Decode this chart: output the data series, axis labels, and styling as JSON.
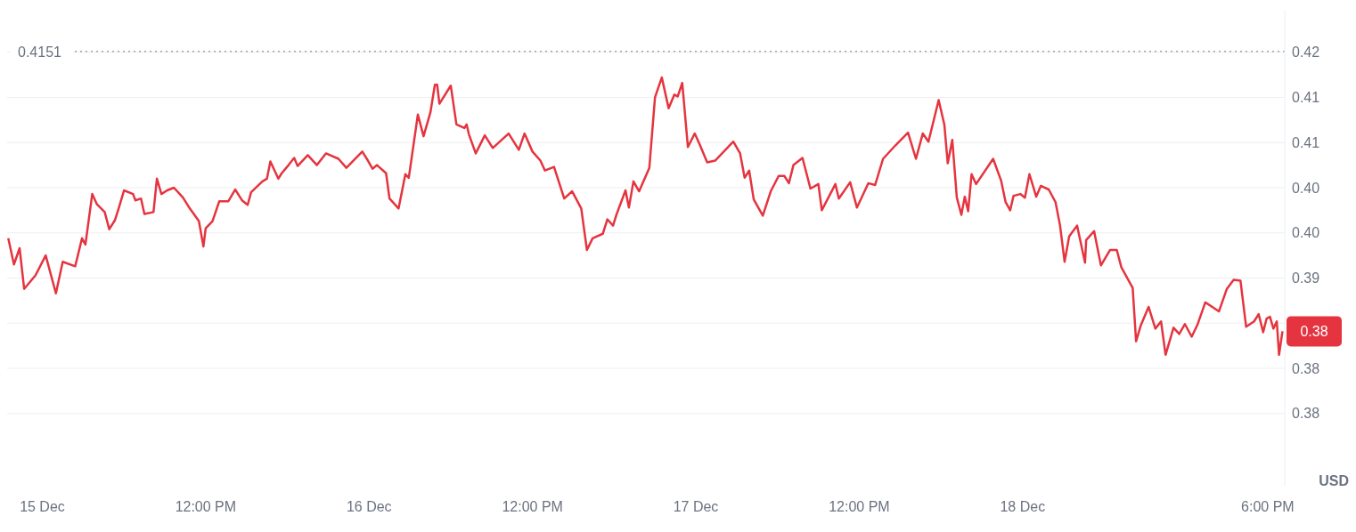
{
  "chart_data": {
    "type": "line",
    "ylabel": "USD",
    "x": [
      "--12-14T21:30",
      "--12-14T21:55",
      "--12-14T22:20",
      "--12-14T22:40",
      "--12-14T23:30",
      "--12-15T00:15",
      "--12-15T01:00",
      "--12-15T01:30",
      "--12-15T02:25",
      "--12-15T02:55",
      "--12-15T03:10",
      "--12-15T03:40",
      "--12-15T04:00",
      "--12-15T04:35",
      "--12-15T04:55",
      "--12-15T05:20",
      "--12-15T05:40",
      "--12-15T06:00",
      "--12-15T06:40",
      "--12-15T06:50",
      "--12-15T07:15",
      "--12-15T07:30",
      "--12-15T08:10",
      "--12-15T08:25",
      "--12-15T08:45",
      "--12-15T09:10",
      "--12-15T09:40",
      "--12-15T10:20",
      "--12-15T10:50",
      "--12-15T11:30",
      "--12-15T11:50",
      "--12-15T12:00",
      "--12-15T12:30",
      "--12-15T13:00",
      "--12-15T13:40",
      "--12-15T14:10",
      "--12-15T14:40",
      "--12-15T15:05",
      "--12-15T15:20",
      "--12-15T16:10",
      "--12-15T16:30",
      "--12-15T16:45",
      "--12-15T17:20",
      "--12-15T17:35",
      "--12-15T18:05",
      "--12-15T18:30",
      "--12-15T18:45",
      "--12-15T19:30",
      "--12-15T20:10",
      "--12-15T20:50",
      "--12-15T21:45",
      "--12-15T22:20",
      "--12-15T23:30",
      "--12-15T23:55",
      "--12-16T00:15",
      "--12-16T00:35",
      "--12-16T01:15",
      "--12-16T01:30",
      "--12-16T02:10",
      "--12-16T02:40",
      "--12-16T02:55",
      "--12-16T03:35",
      "--12-16T04:00",
      "--12-16T04:30",
      "--12-16T04:50",
      "--12-16T05:00",
      "--12-16T05:10",
      "--12-16T06:00",
      "--12-16T06:25",
      "--12-16T07:00",
      "--12-16T07:10",
      "--12-16T07:20",
      "--12-16T07:50",
      "--12-16T08:30",
      "--12-16T09:05",
      "--12-16T10:15",
      "--12-16T11:00",
      "--12-16T11:25",
      "--12-16T12:00",
      "--12-16T12:35",
      "--12-16T12:55",
      "--12-16T13:35",
      "--12-16T14:20",
      "--12-16T14:55",
      "--12-16T15:35",
      "--12-16T16:00",
      "--12-16T16:25",
      "--12-16T17:10",
      "--12-16T17:30",
      "--12-16T17:55",
      "--12-16T18:10",
      "--12-16T18:50",
      "--12-16T19:05",
      "--12-16T19:25",
      "--12-16T19:50",
      "--12-16T20:35",
      "--12-16T21:00",
      "--12-16T21:30",
      "--12-16T22:00",
      "--12-16T22:25",
      "--12-16T22:40",
      "--12-16T23:00",
      "--12-16T23:25",
      "--12-16T23:55",
      "--12-17T00:15",
      "--12-17T00:50",
      "--12-17T01:25",
      "--12-17T02:45",
      "--12-17T03:15",
      "--12-17T03:35",
      "--12-17T03:55",
      "--12-17T04:15",
      "--12-17T04:55",
      "--12-17T05:30",
      "--12-17T06:05",
      "--12-17T06:30",
      "--12-17T06:50",
      "--12-17T07:10",
      "--12-17T07:50",
      "--12-17T08:25",
      "--12-17T09:00",
      "--12-17T09:15",
      "--12-17T10:15",
      "--12-17T10:30",
      "--12-17T11:20",
      "--12-17T11:50",
      "--12-17T12:40",
      "--12-17T13:10",
      "--12-17T13:45",
      "--12-17T14:40",
      "--12-17T15:35",
      "--12-17T16:10",
      "--12-17T16:40",
      "--12-17T17:05",
      "--12-17T17:50",
      "--12-17T18:15",
      "--12-17T18:30",
      "--12-17T18:50",
      "--12-17T19:10",
      "--12-17T19:30",
      "--12-17T19:45",
      "--12-17T20:00",
      "--12-17T20:15",
      "--12-17T20:35",
      "--12-17T21:50",
      "--12-17T22:25",
      "--12-17T22:45",
      "--12-17T23:05",
      "--12-17T23:20",
      "--12-17T23:50",
      "--12-18T00:10",
      "--12-18T00:30",
      "--12-18T01:00",
      "--12-18T01:20",
      "--12-18T01:55",
      "--12-18T02:25",
      "--12-18T02:45",
      "--12-18T03:05",
      "--12-18T03:25",
      "--12-18T04:00",
      "--12-18T04:35",
      "--12-18T04:40",
      "--12-18T05:15",
      "--12-18T05:45",
      "--12-18T06:25",
      "--12-18T06:55",
      "--12-18T07:15",
      "--12-18T08:05",
      "--12-18T08:20",
      "--12-18T08:40",
      "--12-18T09:15",
      "--12-18T09:45",
      "--12-18T10:10",
      "--12-18T10:30",
      "--12-18T11:05",
      "--12-18T11:30",
      "--12-18T11:55",
      "--12-18T12:25",
      "--12-18T12:50",
      "--12-18T13:25",
      "--12-18T13:50",
      "--12-18T14:25",
      "--12-18T15:00",
      "--12-18T15:30",
      "--12-18T16:00",
      "--12-18T16:25",
      "--12-18T17:00",
      "--12-18T17:20",
      "--12-18T17:40",
      "--12-18T17:55",
      "--12-18T18:10",
      "--12-18T18:25",
      "--12-18T18:40",
      "--12-18T18:50",
      "--12-18T19:05"
    ],
    "series": [
      {
        "color": "#e5343f",
        "values": [
          0.3944,
          0.3915,
          0.3933,
          0.3888,
          0.3903,
          0.3925,
          0.3883,
          0.3918,
          0.3913,
          0.3944,
          0.3937,
          0.3993,
          0.3982,
          0.3973,
          0.3954,
          0.3964,
          0.398,
          0.3997,
          0.3993,
          0.3986,
          0.3988,
          0.3971,
          0.3973,
          0.401,
          0.3993,
          0.3997,
          0.4,
          0.3989,
          0.3977,
          0.3963,
          0.3935,
          0.3955,
          0.3963,
          0.3985,
          0.3985,
          0.3998,
          0.3986,
          0.3981,
          0.3995,
          0.4007,
          0.401,
          0.4029,
          0.401,
          0.4016,
          0.4025,
          0.4033,
          0.4024,
          0.4036,
          0.4025,
          0.4038,
          0.4032,
          0.4022,
          0.404,
          0.403,
          0.4021,
          0.4025,
          0.4016,
          0.3988,
          0.3977,
          0.4015,
          0.4011,
          0.4081,
          0.4057,
          0.4083,
          0.4114,
          0.4114,
          0.4093,
          0.4113,
          0.407,
          0.4066,
          0.407,
          0.4059,
          0.4038,
          0.4058,
          0.4044,
          0.406,
          0.4042,
          0.406,
          0.404,
          0.403,
          0.4019,
          0.4023,
          0.3988,
          0.3996,
          0.3977,
          0.3931,
          0.3944,
          0.3949,
          0.3965,
          0.3958,
          0.397,
          0.3997,
          0.3978,
          0.4007,
          0.3996,
          0.4022,
          0.41,
          0.4122,
          0.4088,
          0.4103,
          0.4101,
          0.4116,
          0.4045,
          0.406,
          0.4049,
          0.4028,
          0.403,
          0.4051,
          0.4038,
          0.4011,
          0.4019,
          0.3987,
          0.3969,
          0.3996,
          0.4013,
          0.4013,
          0.4005,
          0.4025,
          0.4033,
          0.3999,
          0.4004,
          0.3975,
          0.4004,
          0.3988,
          0.4006,
          0.3978,
          0.4005,
          0.4003,
          0.4032,
          0.4047,
          0.4061,
          0.4032,
          0.406,
          0.4051,
          0.4097,
          0.407,
          0.4027,
          0.4053,
          0.3989,
          0.397,
          0.399,
          0.3974,
          0.4015,
          0.4004,
          0.4032,
          0.4008,
          0.3984,
          0.3975,
          0.3991,
          0.3993,
          0.3989,
          0.4015,
          0.399,
          0.4002,
          0.3998,
          0.3984,
          0.3958,
          0.3918,
          0.3946,
          0.3958,
          0.3917,
          0.3942,
          0.3952,
          0.3914,
          0.3931,
          0.3931,
          0.3912,
          0.3889,
          0.383,
          0.3847,
          0.3868,
          0.3844,
          0.3852,
          0.3815,
          0.3845,
          0.3838,
          0.3849,
          0.3835,
          0.3848,
          0.3873,
          0.3869,
          0.3863,
          0.3888,
          0.3898,
          0.3897,
          0.3846,
          0.3852,
          0.386,
          0.384,
          0.3855,
          0.3857,
          0.3844,
          0.3852,
          0.3815,
          0.3841
        ]
      }
    ],
    "xlim": [
      "--12-14T21:25",
      "--12-18T19:15"
    ],
    "xticks": [
      {
        "value": "--12-15T00:00",
        "label": "15 Dec"
      },
      {
        "value": "--12-15T12:00",
        "label": "12:00 PM"
      },
      {
        "value": "--12-16T00:00",
        "label": "16 Dec"
      },
      {
        "value": "--12-16T12:00",
        "label": "12:00 PM"
      },
      {
        "value": "--12-17T00:00",
        "label": "17 Dec"
      },
      {
        "value": "--12-17T12:00",
        "label": "12:00 PM"
      },
      {
        "value": "--12-18T00:00",
        "label": "18 Dec"
      },
      {
        "value": "--12-18T18:00",
        "label": "6:00 PM"
      }
    ],
    "ylim": [
      0.367,
      0.4196
    ],
    "yticks": [
      {
        "value": 0.415,
        "label": "0.42"
      },
      {
        "value": 0.41,
        "label": "0.41"
      },
      {
        "value": 0.405,
        "label": "0.41"
      },
      {
        "value": 0.4,
        "label": "0.40"
      },
      {
        "value": 0.395,
        "label": "0.40"
      },
      {
        "value": 0.39,
        "label": "0.39"
      },
      {
        "value": 0.385,
        "label": null
      },
      {
        "value": 0.38,
        "label": "0.38"
      },
      {
        "value": 0.375,
        "label": "0.38"
      }
    ],
    "grid": "y",
    "ref_lines": [
      {
        "axis": "y",
        "value": 0.4151,
        "label": "0.4151",
        "color": "#9ca3af",
        "line_style": "dotted"
      }
    ],
    "annotations": [
      {
        "text": "0.38",
        "x": "--12-18T19:05",
        "y": 0.3841
      }
    ]
  }
}
